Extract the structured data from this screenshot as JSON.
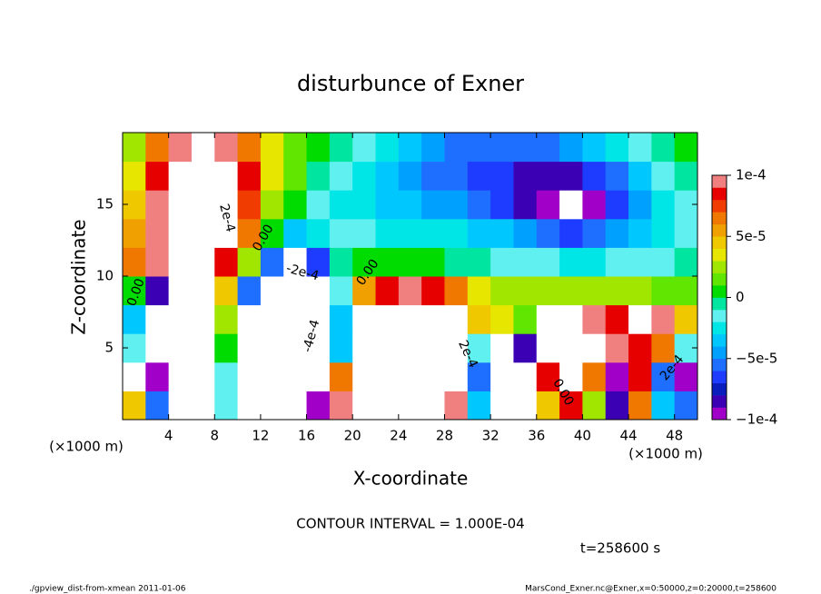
{
  "chart_data": {
    "type": "heatmap",
    "title": "disturbunce of Exner",
    "xlabel": "X-coordinate",
    "ylabel": "Z-coordinate",
    "x_unit": "(×1000 m)",
    "y_unit": "(×1000 m)",
    "contour_interval": "CONTOUR INTERVAL = 1.000E-04",
    "time_label": "t=258600 s",
    "footer_left": "./gpview_dist-from-xmean  2011-01-06",
    "footer_right": "MarsCond_Exner.nc@Exner,x=0:50000,z=0:20000,t=258600",
    "annotations": [
      "2e-4",
      "0.00",
      "-2e-4",
      "0.00",
      "0.00",
      "-4e-4",
      "2e-4",
      "0.00",
      "2e-4"
    ],
    "xlim": [
      0,
      50
    ],
    "ylim": [
      0,
      20
    ],
    "xticks": [
      4,
      8,
      12,
      16,
      20,
      24,
      28,
      32,
      36,
      40,
      44,
      48
    ],
    "yticks": [
      5,
      10,
      15
    ],
    "zlim": [
      -0.0001,
      0.0001
    ],
    "zticks": [
      {
        "value": -0.0001,
        "label": "−1e-4"
      },
      {
        "value": -5e-05,
        "label": "−5e-5"
      },
      {
        "value": 0,
        "label": "0"
      },
      {
        "value": 5e-05,
        "label": "5e-5"
      },
      {
        "value": 0.0001,
        "label": "1e-4"
      }
    ],
    "colors": [
      "#a000c8",
      "#3c00b4",
      "#0a1ebe",
      "#1e3cff",
      "#1e6eff",
      "#00a0ff",
      "#00c8ff",
      "#00e6e6",
      "#60f0f0",
      "#00e6a0",
      "#00dc00",
      "#60e600",
      "#a0e600",
      "#e6e600",
      "#f0c800",
      "#f0a000",
      "#f07800",
      "#f03c00",
      "#e60000",
      "#f08080"
    ],
    "out_of_range_color": "#ffffff",
    "x": [
      1,
      3,
      5,
      7,
      9,
      11,
      13,
      15,
      17,
      19,
      21,
      23,
      25,
      27,
      29,
      31,
      33,
      35,
      37,
      39,
      41,
      43,
      45,
      47,
      49
    ],
    "y": [
      1,
      3,
      5,
      7,
      9,
      11,
      13,
      15,
      17,
      19
    ],
    "z": [
      [
        4e-05,
        -6e-05,
        0.00014,
        0.00016,
        -2e-05,
        -0.00016,
        -0.00022,
        -0.00018,
        -0.0001,
        0.0001,
        0.00012,
        0.00014,
        0.00015,
        0.00012,
        0.0001,
        -4e-05,
        -0.00014,
        -0.00016,
        4e-05,
        8e-05,
        2e-05,
        -8e-05,
        6e-05,
        -4e-05,
        -6e-05
      ],
      [
        -0.00012,
        -0.0001,
        0.00013,
        0.00015,
        -2e-05,
        -0.00018,
        -0.00028,
        -0.00026,
        -0.00016,
        6e-05,
        0.00014,
        0.00016,
        0.00016,
        0.00014,
        0.00012,
        -6e-05,
        -0.0002,
        -0.00018,
        8e-05,
        0.00012,
        6e-05,
        -0.0001,
        8e-05,
        -6e-05,
        -0.0001
      ],
      [
        -2e-05,
        -0.00014,
        0.00012,
        0.00014,
        0,
        -0.00018,
        -0.00028,
        -0.0003,
        -0.0002,
        -4e-05,
        0.00014,
        0.00016,
        0.00016,
        0.00016,
        0.00012,
        -2e-05,
        -0.00016,
        -8e-05,
        0.00014,
        0.00016,
        0.00014,
        0.0001,
        8e-05,
        6e-05,
        -2e-05
      ],
      [
        -4e-05,
        -0.00012,
        0.00011,
        0.00012,
        2e-05,
        -0.00014,
        -0.0002,
        -0.00022,
        -0.00016,
        -4e-05,
        0.00012,
        0.00014,
        0.00015,
        0.00014,
        0.00012,
        4e-05,
        3e-05,
        1e-05,
        0.00012,
        0.00013,
        9e-05,
        8e-05,
        0.00012,
        0.0001,
        4e-05
      ],
      [
        0,
        -8e-05,
        0.00011,
        0.00012,
        4e-05,
        -6e-05,
        -0.00012,
        -0.00016,
        -0.00012,
        -2e-05,
        5e-05,
        8e-05,
        9e-05,
        8e-05,
        6e-05,
        3e-05,
        2e-05,
        2e-05,
        2e-05,
        2e-05,
        2e-05,
        2e-05,
        2e-05,
        1e-05,
        1e-05
      ],
      [
        6e-05,
        9e-05,
        0.00011,
        0.00012,
        8e-05,
        2e-05,
        -6e-05,
        -0.00012,
        -7e-05,
        -1e-05,
        0,
        0,
        0,
        0,
        -1e-05,
        -1e-05,
        -2e-05,
        -2e-05,
        -2e-05,
        -3e-05,
        -3e-05,
        -2e-05,
        -2e-05,
        -2e-05,
        -1e-05
      ],
      [
        5e-05,
        0.0001,
        0.00012,
        0.00013,
        0.00012,
        6e-05,
        0,
        -4e-05,
        -3e-05,
        -2e-05,
        -2e-05,
        -3e-05,
        -3e-05,
        -3e-05,
        -3e-05,
        -4e-05,
        -4e-05,
        -5e-05,
        -6e-05,
        -7e-05,
        -6e-05,
        -5e-05,
        -4e-05,
        -3e-05,
        -2e-05
      ],
      [
        4e-05,
        9e-05,
        0.00013,
        0.00015,
        0.00014,
        7e-05,
        2e-05,
        0,
        -2e-05,
        -3e-05,
        -3e-05,
        -4e-05,
        -4e-05,
        -5e-05,
        -5e-05,
        -6e-05,
        -7e-05,
        -8e-05,
        -9e-05,
        -0.00012,
        -9e-05,
        -7e-05,
        -5e-05,
        -3e-05,
        -2e-05
      ],
      [
        3e-05,
        8e-05,
        0.00014,
        0.00015,
        0.00014,
        8e-05,
        3e-05,
        1e-05,
        -1e-05,
        -2e-05,
        -3e-05,
        -4e-05,
        -5e-05,
        -6e-05,
        -6e-05,
        -7e-05,
        -7e-05,
        -8e-05,
        -8e-05,
        -8e-05,
        -7e-05,
        -6e-05,
        -4e-05,
        -2e-05,
        -1e-05
      ],
      [
        2e-05,
        6e-05,
        9e-05,
        0.00012,
        0.0001,
        6e-05,
        3e-05,
        1e-05,
        0,
        -1e-05,
        -2e-05,
        -3e-05,
        -4e-05,
        -5e-05,
        -6e-05,
        -6e-05,
        -6e-05,
        -6e-05,
        -6e-05,
        -5e-05,
        -4e-05,
        -3e-05,
        -2e-05,
        -1e-05,
        0
      ]
    ]
  }
}
